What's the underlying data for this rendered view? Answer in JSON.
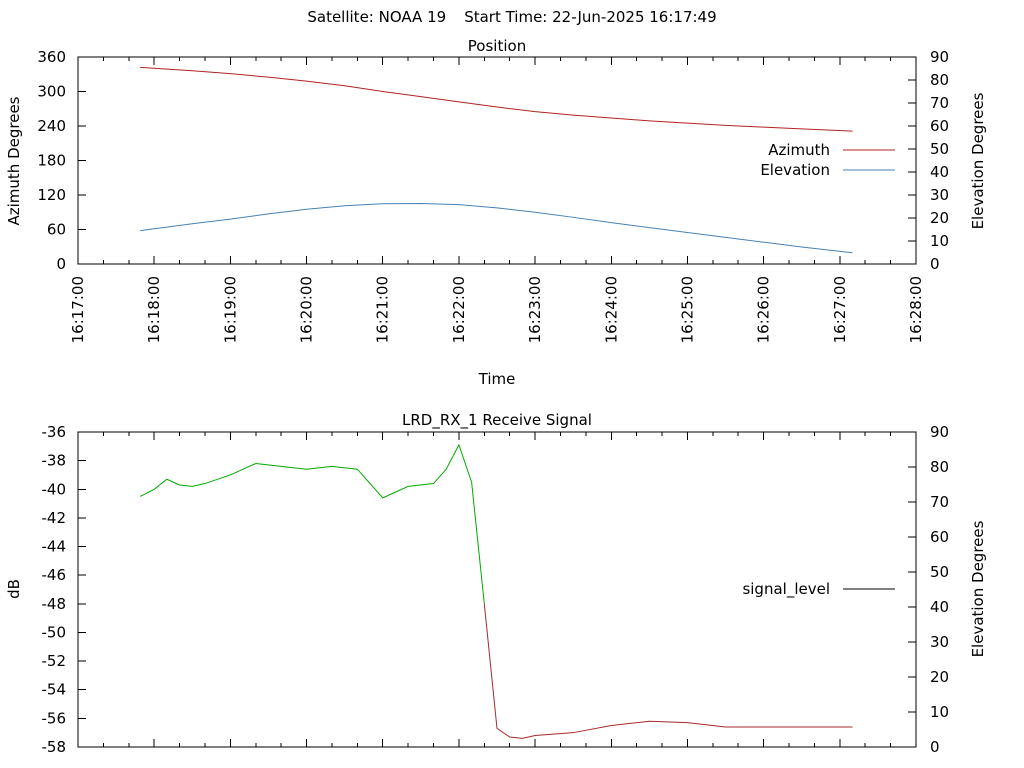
{
  "header": {
    "satellite": "Satellite: NOAA 19",
    "start_time": "Start Time: 22-Jun-2025 16:17:49"
  },
  "chart_data": [
    {
      "type": "line",
      "title": "Position",
      "xlabel": "Time",
      "ylabel": "Azimuth Degrees",
      "y2label": "Elevation Degrees",
      "xlim": [
        "16:17:00",
        "16:28:00"
      ],
      "ylim": [
        0,
        360
      ],
      "y2lim": [
        0,
        90
      ],
      "x_ticks": [
        "16:17:00",
        "16:18:00",
        "16:19:00",
        "16:20:00",
        "16:21:00",
        "16:22:00",
        "16:23:00",
        "16:24:00",
        "16:25:00",
        "16:26:00",
        "16:27:00",
        "16:28:00"
      ],
      "y_ticks": [
        0,
        60,
        120,
        180,
        240,
        300,
        360
      ],
      "y2_ticks": [
        0,
        10,
        20,
        30,
        40,
        50,
        60,
        70,
        80,
        90
      ],
      "legend_position": "right",
      "grid": false,
      "series": [
        {
          "name": "Azimuth",
          "axis": "y",
          "color": "#b22222",
          "x": [
            "16:17:49",
            "16:18:30",
            "16:19:00",
            "16:19:30",
            "16:20:00",
            "16:20:30",
            "16:21:00",
            "16:21:30",
            "16:22:00",
            "16:22:30",
            "16:23:00",
            "16:23:30",
            "16:24:00",
            "16:24:30",
            "16:25:00",
            "16:25:30",
            "16:26:00",
            "16:26:30",
            "16:27:10"
          ],
          "values": [
            342,
            336,
            331,
            325,
            318,
            310,
            300,
            291,
            282,
            273,
            265,
            259,
            254,
            249,
            245,
            241,
            238,
            235,
            231
          ]
        },
        {
          "name": "Elevation",
          "axis": "y2",
          "color": "#4682b4",
          "x": [
            "16:17:49",
            "16:18:30",
            "16:19:00",
            "16:19:30",
            "16:20:00",
            "16:20:30",
            "16:21:00",
            "16:21:30",
            "16:22:00",
            "16:22:30",
            "16:23:00",
            "16:23:30",
            "16:24:00",
            "16:24:30",
            "16:25:00",
            "16:25:30",
            "16:26:00",
            "16:26:30",
            "16:27:10"
          ],
          "values": [
            14.5,
            17.5,
            19.5,
            21.8,
            23.8,
            25.3,
            26.2,
            26.3,
            25.8,
            24.4,
            22.5,
            20.3,
            18.0,
            15.8,
            13.7,
            11.6,
            9.5,
            7.4,
            4.9
          ]
        }
      ]
    },
    {
      "type": "line",
      "title": "LRD_RX_1 Receive Signal",
      "xlabel": "",
      "ylabel": "dB",
      "y2label": "Elevation Degrees",
      "xlim": [
        "16:17:00",
        "16:28:00"
      ],
      "ylim": [
        -58,
        -36
      ],
      "y2lim": [
        0,
        90
      ],
      "y_ticks": [
        -36,
        -38,
        -40,
        -42,
        -44,
        -46,
        -48,
        -50,
        -52,
        -54,
        -56,
        -58
      ],
      "y2_ticks": [
        0,
        10,
        20,
        30,
        40,
        50,
        60,
        70,
        80,
        90
      ],
      "legend_position": "right",
      "grid": false,
      "series": [
        {
          "name": "signal_level",
          "axis": "y",
          "color": "#00aa00",
          "low_color": "#a52a2a",
          "legend_color": "#000000",
          "x": [
            "16:17:49",
            "16:18:00",
            "16:18:10",
            "16:18:20",
            "16:18:30",
            "16:18:40",
            "16:19:00",
            "16:19:20",
            "16:19:40",
            "16:20:00",
            "16:20:20",
            "16:20:40",
            "16:21:00",
            "16:21:20",
            "16:21:40",
            "16:21:50",
            "16:22:00",
            "16:22:10",
            "16:22:20",
            "16:22:30",
            "16:22:40",
            "16:22:50",
            "16:23:00",
            "16:23:30",
            "16:24:00",
            "16:24:30",
            "16:25:00",
            "16:25:30",
            "16:26:00",
            "16:26:30",
            "16:27:10"
          ],
          "values": [
            -40.5,
            -40.0,
            -39.3,
            -39.7,
            -39.8,
            -39.6,
            -39.0,
            -38.2,
            -38.4,
            -38.6,
            -38.4,
            -38.6,
            -40.6,
            -39.8,
            -39.6,
            -38.6,
            -36.9,
            -39.5,
            -48.0,
            -56.7,
            -57.3,
            -57.4,
            -57.2,
            -57.0,
            -56.5,
            -56.2,
            -56.3,
            -56.6,
            -56.6,
            -56.6,
            -56.6
          ]
        }
      ]
    }
  ]
}
